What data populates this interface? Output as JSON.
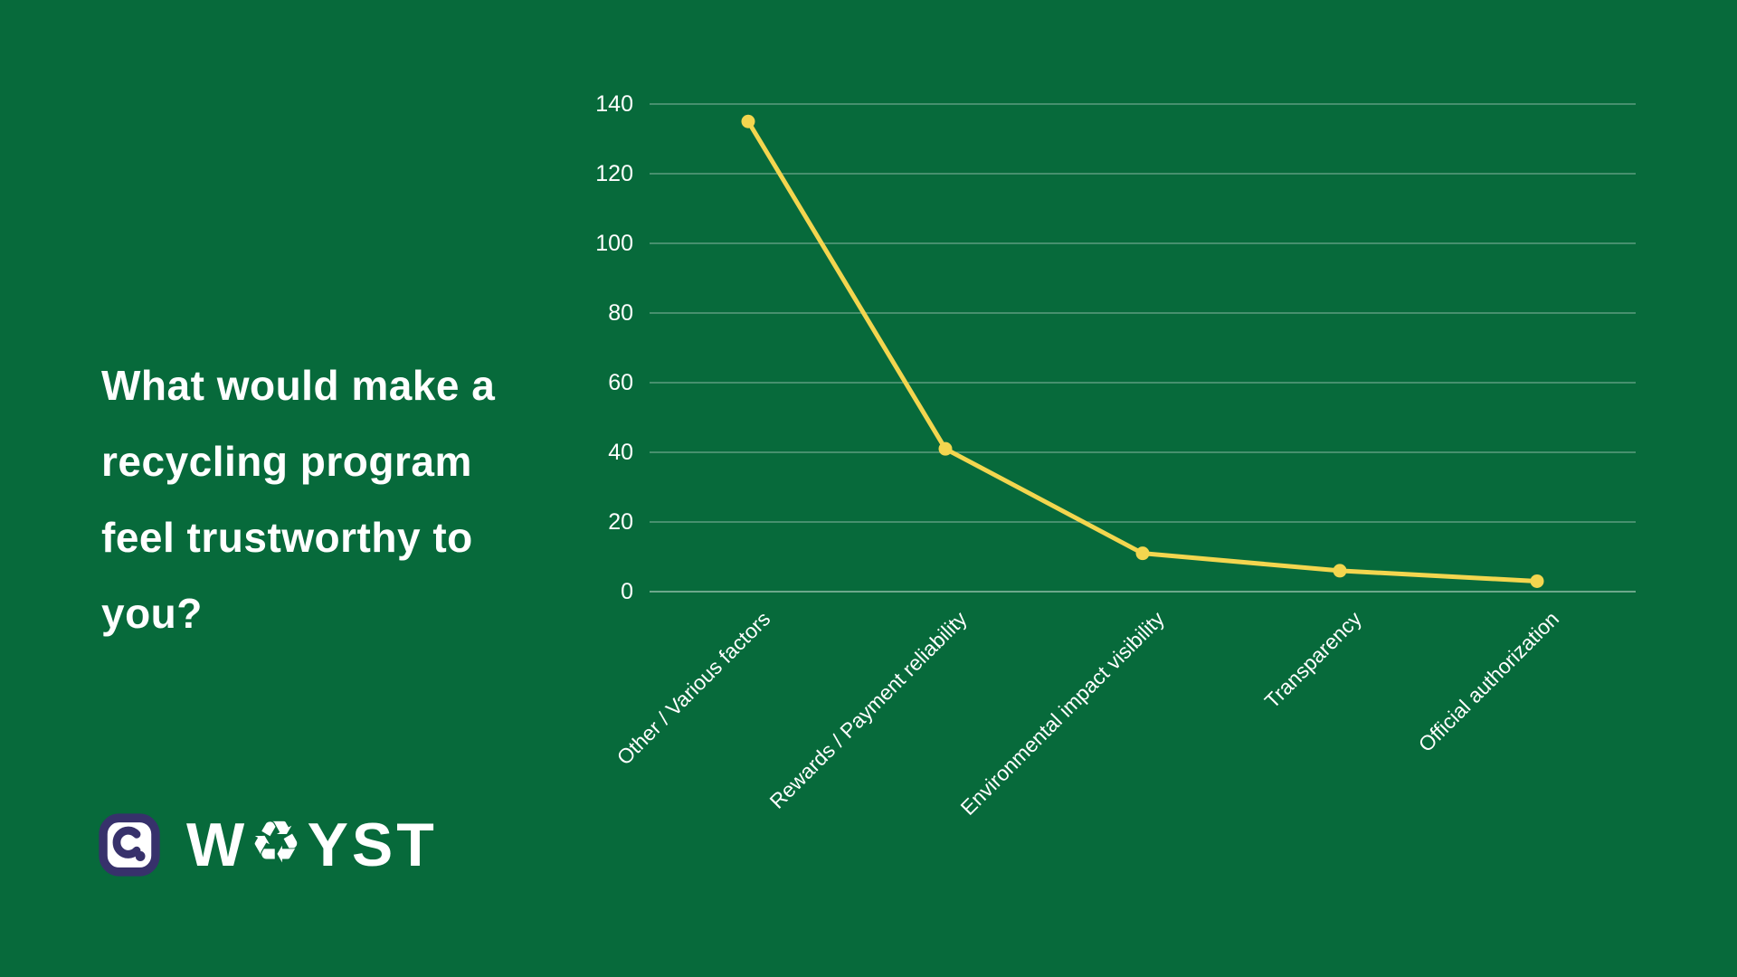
{
  "theme": {
    "background_green": "#076a3b",
    "line_yellow": "#f3d64f",
    "text_white": "#ffffff",
    "logo_purple": "#37316b",
    "gridline_color": "rgba(255,255,255,0.35)",
    "axis_line_color": "rgba(255,255,255,0.55)"
  },
  "question": {
    "lines": {
      "0": "What would make a",
      "1": "recycling program",
      "2": "feel trustworthy to",
      "3": "you?"
    }
  },
  "chart_data": {
    "type": "line",
    "title": "What would make a recycling program feel trustworthy to you?",
    "categories": [
      "Other / Various factors",
      "Rewards / Payment reliability",
      "Environmental impact visibility",
      "Transparency",
      "Official authorization"
    ],
    "values": [
      135,
      41,
      11,
      6,
      3
    ],
    "xlabel": "",
    "ylabel": "",
    "ylim": [
      0,
      140
    ],
    "yticks": [
      0,
      20,
      40,
      60,
      80,
      100,
      120,
      140
    ],
    "grid": true,
    "legend": "none",
    "line_color": "#f3d64f",
    "marker": "circle"
  },
  "logo": {
    "brand_prefix": "W",
    "recycle_symbol": "♻",
    "brand_suffix": "YST"
  }
}
